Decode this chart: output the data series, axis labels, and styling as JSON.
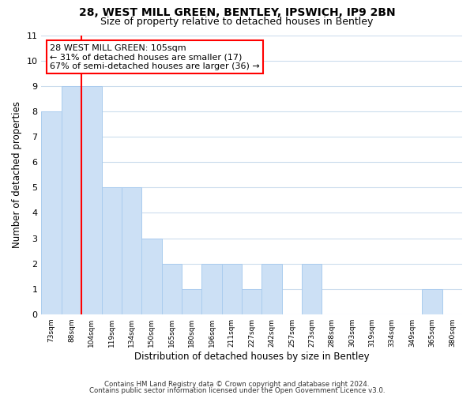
{
  "title1": "28, WEST MILL GREEN, BENTLEY, IPSWICH, IP9 2BN",
  "title2": "Size of property relative to detached houses in Bentley",
  "xlabel": "Distribution of detached houses by size in Bentley",
  "ylabel": "Number of detached properties",
  "bin_labels": [
    "73sqm",
    "88sqm",
    "104sqm",
    "119sqm",
    "134sqm",
    "150sqm",
    "165sqm",
    "180sqm",
    "196sqm",
    "211sqm",
    "227sqm",
    "242sqm",
    "257sqm",
    "273sqm",
    "288sqm",
    "303sqm",
    "319sqm",
    "334sqm",
    "349sqm",
    "365sqm",
    "380sqm"
  ],
  "bar_heights": [
    8,
    9,
    9,
    5,
    5,
    3,
    2,
    1,
    2,
    2,
    1,
    2,
    0,
    2,
    0,
    0,
    0,
    0,
    0,
    1,
    0
  ],
  "bar_color": "#cce0f5",
  "bar_edge_color": "#aaccee",
  "red_line_index": 2,
  "annotation_title": "28 WEST MILL GREEN: 105sqm",
  "annotation_line1": "← 31% of detached houses are smaller (17)",
  "annotation_line2": "67% of semi-detached houses are larger (36) →",
  "ylim_max": 11,
  "footer1": "Contains HM Land Registry data © Crown copyright and database right 2024.",
  "footer2": "Contains public sector information licensed under the Open Government Licence v3.0.",
  "bg_color": "#ffffff",
  "grid_color": "#ccdded"
}
